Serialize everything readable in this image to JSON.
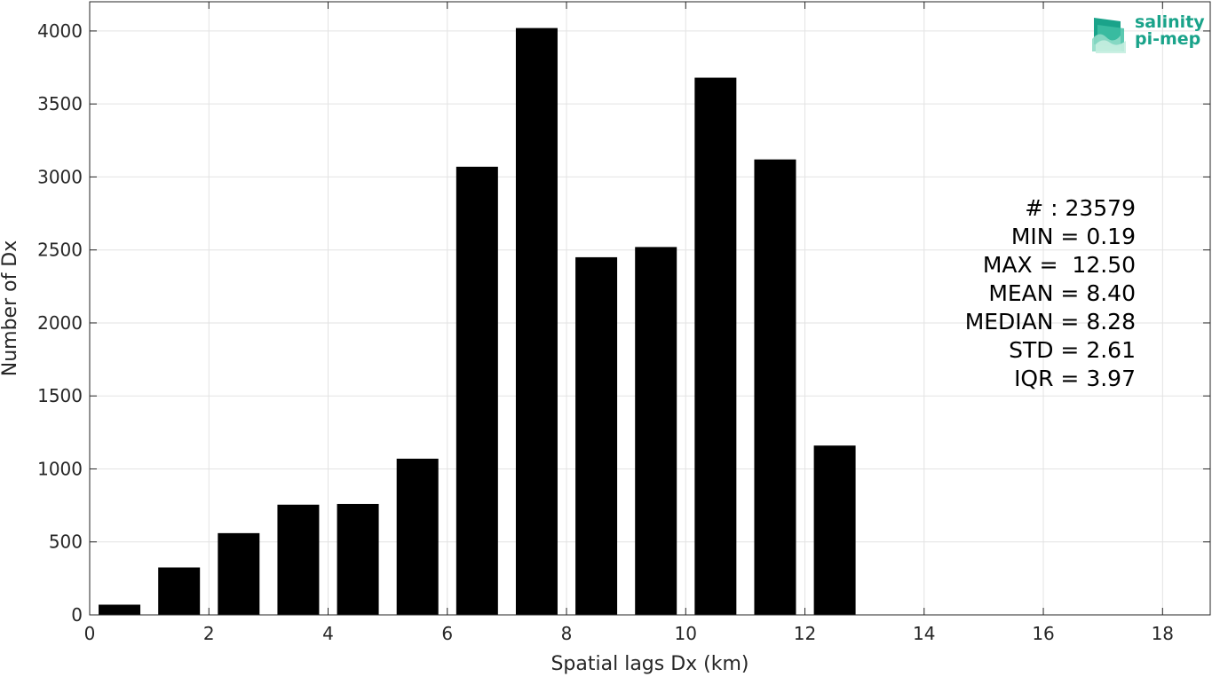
{
  "chart_data": {
    "type": "bar",
    "xlabel": "Spatial lags Dx (km)",
    "ylabel": "Number of Dx",
    "xlim": [
      0,
      18.8
    ],
    "ylim": [
      0,
      4200
    ],
    "xticks": [
      0,
      2,
      4,
      6,
      8,
      10,
      12,
      14,
      16,
      18
    ],
    "yticks": [
      0,
      500,
      1000,
      1500,
      2000,
      2500,
      3000,
      3500,
      4000
    ],
    "bar_width": 0.7,
    "grid": true,
    "bar_color": "#000000",
    "bars": [
      {
        "x": 0.5,
        "value": 70
      },
      {
        "x": 1.5,
        "value": 325
      },
      {
        "x": 2.5,
        "value": 560
      },
      {
        "x": 3.5,
        "value": 755
      },
      {
        "x": 4.5,
        "value": 760
      },
      {
        "x": 5.5,
        "value": 1070
      },
      {
        "x": 6.5,
        "value": 3070
      },
      {
        "x": 7.5,
        "value": 4020
      },
      {
        "x": 8.5,
        "value": 2450
      },
      {
        "x": 9.5,
        "value": 2520
      },
      {
        "x": 10.5,
        "value": 3680
      },
      {
        "x": 11.5,
        "value": 3120
      },
      {
        "x": 12.5,
        "value": 1160
      }
    ]
  },
  "stats": {
    "count": "# : 23579",
    "min": "MIN = 0.19",
    "max": "MAX =  12.50",
    "mean": "MEAN = 8.40",
    "median": "MEDIAN = 8.28",
    "std": "STD = 2.61",
    "iqr": "IQR = 3.97"
  },
  "logo": {
    "line1": "salinity",
    "line2": "pi-mep",
    "color": "#1aa38a",
    "icon": "waves-logo-icon"
  }
}
